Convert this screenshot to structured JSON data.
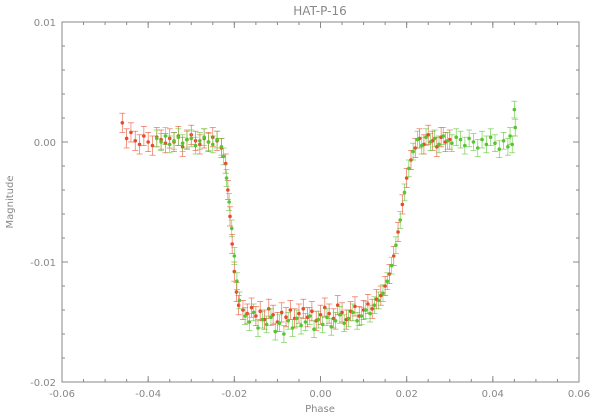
{
  "chart_data": {
    "type": "scatter",
    "title": "HAT-P-16",
    "xlabel": "Phase",
    "ylabel": "Magnitude",
    "xlim": [
      -0.06,
      0.06
    ],
    "ylim": [
      -0.02,
      0.01
    ],
    "y_inverted": true,
    "x_ticks": [
      "-0.06",
      "-0.04",
      "-0.02",
      "0.00",
      "0.02",
      "0.04",
      "0.06"
    ],
    "y_ticks": [
      "0.01",
      "0.00",
      "-0.01",
      "-0.02"
    ],
    "grid": false,
    "legend": "none",
    "error_bars": true,
    "series": [
      {
        "color": "#e84a2b",
        "points": [
          [
            -0.046,
            0.0016,
            0.0008
          ],
          [
            -0.045,
            0.0003,
            0.0008
          ],
          [
            -0.044,
            0.0008,
            0.0008
          ],
          [
            -0.043,
            0.0001,
            0.0008
          ],
          [
            -0.042,
            -0.0002,
            0.0008
          ],
          [
            -0.041,
            0.0005,
            0.0008
          ],
          [
            -0.04,
            0.0,
            0.0008
          ],
          [
            -0.039,
            -0.0003,
            0.0008
          ],
          [
            -0.038,
            0.0004,
            0.0008
          ],
          [
            -0.037,
            0.0002,
            0.0008
          ],
          [
            -0.036,
            -0.0001,
            0.0008
          ],
          [
            -0.035,
            0.0003,
            0.0008
          ],
          [
            -0.034,
            0.0,
            0.0008
          ],
          [
            -0.033,
            0.0005,
            0.0008
          ],
          [
            -0.032,
            -0.0004,
            0.0008
          ],
          [
            -0.031,
            0.0002,
            0.0008
          ],
          [
            -0.03,
            0.0006,
            0.0008
          ],
          [
            -0.029,
            0.0001,
            0.0008
          ],
          [
            -0.028,
            -0.0002,
            0.0008
          ],
          [
            -0.027,
            0.0003,
            0.0008
          ],
          [
            -0.026,
            0.0,
            0.0008
          ],
          [
            -0.025,
            0.0004,
            0.0008
          ],
          [
            -0.024,
            0.0001,
            0.0008
          ],
          [
            -0.023,
            -0.0005,
            0.0008
          ],
          [
            -0.022,
            -0.0018,
            0.0008
          ],
          [
            -0.0215,
            -0.004,
            0.0008
          ],
          [
            -0.021,
            -0.0062,
            0.0008
          ],
          [
            -0.0205,
            -0.0085,
            0.0008
          ],
          [
            -0.02,
            -0.0108,
            0.0008
          ],
          [
            -0.0195,
            -0.0125,
            0.0008
          ],
          [
            -0.019,
            -0.0136,
            0.0008
          ],
          [
            -0.018,
            -0.014,
            0.0008
          ],
          [
            -0.017,
            -0.0143,
            0.0008
          ],
          [
            -0.016,
            -0.0138,
            0.0008
          ],
          [
            -0.015,
            -0.0145,
            0.0008
          ],
          [
            -0.014,
            -0.0141,
            0.0008
          ],
          [
            -0.013,
            -0.0148,
            0.0008
          ],
          [
            -0.012,
            -0.0139,
            0.0008
          ],
          [
            -0.011,
            -0.0144,
            0.0008
          ],
          [
            -0.01,
            -0.015,
            0.0008
          ],
          [
            -0.009,
            -0.0142,
            0.0008
          ],
          [
            -0.008,
            -0.0146,
            0.0008
          ],
          [
            -0.007,
            -0.014,
            0.0008
          ],
          [
            -0.006,
            -0.0147,
            0.0008
          ],
          [
            -0.005,
            -0.0143,
            0.0008
          ],
          [
            -0.004,
            -0.0139,
            0.0008
          ],
          [
            -0.003,
            -0.0146,
            0.0008
          ],
          [
            -0.002,
            -0.0141,
            0.0008
          ],
          [
            -0.001,
            -0.0149,
            0.0008
          ],
          [
            0.0,
            -0.0144,
            0.0008
          ],
          [
            0.001,
            -0.0138,
            0.0008
          ],
          [
            0.002,
            -0.0143,
            0.0008
          ],
          [
            0.003,
            -0.0147,
            0.0008
          ],
          [
            0.004,
            -0.0136,
            0.0008
          ],
          [
            0.005,
            -0.0142,
            0.0008
          ],
          [
            0.006,
            -0.0148,
            0.0008
          ],
          [
            0.007,
            -0.0141,
            0.0008
          ],
          [
            0.008,
            -0.0137,
            0.0008
          ],
          [
            0.009,
            -0.0145,
            0.0008
          ],
          [
            0.01,
            -0.014,
            0.0008
          ],
          [
            0.011,
            -0.0135,
            0.0008
          ],
          [
            0.012,
            -0.0139,
            0.0008
          ],
          [
            0.013,
            -0.0131,
            0.0008
          ],
          [
            0.014,
            -0.0128,
            0.0008
          ],
          [
            0.015,
            -0.012,
            0.0008
          ],
          [
            0.016,
            -0.011,
            0.0008
          ],
          [
            0.017,
            -0.0095,
            0.0008
          ],
          [
            0.018,
            -0.0075,
            0.0008
          ],
          [
            0.019,
            -0.0052,
            0.0008
          ],
          [
            0.02,
            -0.003,
            0.0008
          ],
          [
            0.021,
            -0.0015,
            0.0008
          ],
          [
            0.022,
            -0.0005,
            0.0008
          ],
          [
            0.023,
            0.0003,
            0.0008
          ],
          [
            0.024,
            -0.0002,
            0.0008
          ],
          [
            0.025,
            0.0006,
            0.0008
          ],
          [
            0.026,
            0.0001,
            0.0008
          ],
          [
            0.027,
            -0.0004,
            0.0008
          ],
          [
            0.028,
            0.0004,
            0.0008
          ],
          [
            0.029,
            0.0,
            0.0008
          ],
          [
            0.03,
            0.0002,
            0.0008
          ]
        ]
      },
      {
        "color": "#58c42e",
        "points": [
          [
            -0.038,
            0.0003,
            0.0007
          ],
          [
            -0.037,
            0.0,
            0.0007
          ],
          [
            -0.036,
            0.0005,
            0.0007
          ],
          [
            -0.035,
            -0.0002,
            0.0007
          ],
          [
            -0.034,
            0.0001,
            0.0007
          ],
          [
            -0.033,
            0.0004,
            0.0007
          ],
          [
            -0.032,
            -0.0001,
            0.0007
          ],
          [
            -0.031,
            0.0002,
            0.0007
          ],
          [
            -0.03,
            0.0003,
            0.0007
          ],
          [
            -0.029,
            -0.0003,
            0.0007
          ],
          [
            -0.028,
            0.0001,
            0.0007
          ],
          [
            -0.027,
            0.0004,
            0.0007
          ],
          [
            -0.026,
            0.0,
            0.0007
          ],
          [
            -0.025,
            -0.0002,
            0.0007
          ],
          [
            -0.024,
            0.0002,
            0.0007
          ],
          [
            -0.023,
            -0.0004,
            0.0007
          ],
          [
            -0.0225,
            -0.0012,
            0.0007
          ],
          [
            -0.0218,
            -0.003,
            0.0007
          ],
          [
            -0.0212,
            -0.005,
            0.0007
          ],
          [
            -0.0206,
            -0.0072,
            0.0007
          ],
          [
            -0.02,
            -0.0095,
            0.0007
          ],
          [
            -0.0194,
            -0.0116,
            0.0007
          ],
          [
            -0.0188,
            -0.0132,
            0.0007
          ],
          [
            -0.0175,
            -0.0145,
            0.0007
          ],
          [
            -0.0165,
            -0.015,
            0.0007
          ],
          [
            -0.0155,
            -0.0142,
            0.0007
          ],
          [
            -0.0145,
            -0.0155,
            0.0007
          ],
          [
            -0.0135,
            -0.0148,
            0.0007
          ],
          [
            -0.0125,
            -0.0152,
            0.0007
          ],
          [
            -0.0115,
            -0.0146,
            0.0007
          ],
          [
            -0.0105,
            -0.0158,
            0.0007
          ],
          [
            -0.0095,
            -0.0151,
            0.0007
          ],
          [
            -0.0085,
            -0.016,
            0.0007
          ],
          [
            -0.0075,
            -0.0149,
            0.0007
          ],
          [
            -0.0065,
            -0.0155,
            0.0007
          ],
          [
            -0.0055,
            -0.0147,
            0.0007
          ],
          [
            -0.0045,
            -0.0153,
            0.0007
          ],
          [
            -0.0035,
            -0.015,
            0.0007
          ],
          [
            -0.0025,
            -0.0145,
            0.0007
          ],
          [
            -0.0015,
            -0.0156,
            0.0007
          ],
          [
            -0.0005,
            -0.0148,
            0.0007
          ],
          [
            0.0005,
            -0.0152,
            0.0007
          ],
          [
            0.0015,
            -0.0146,
            0.0007
          ],
          [
            0.0025,
            -0.0154,
            0.0007
          ],
          [
            0.0035,
            -0.0149,
            0.0007
          ],
          [
            0.0045,
            -0.0144,
            0.0007
          ],
          [
            0.0055,
            -0.0151,
            0.0007
          ],
          [
            0.0065,
            -0.0147,
            0.0007
          ],
          [
            0.0075,
            -0.0142,
            0.0007
          ],
          [
            0.0085,
            -0.0149,
            0.0007
          ],
          [
            0.0095,
            -0.0145,
            0.0007
          ],
          [
            0.0105,
            -0.014,
            0.0007
          ],
          [
            0.0115,
            -0.0143,
            0.0007
          ],
          [
            0.0125,
            -0.0136,
            0.0007
          ],
          [
            0.0135,
            -0.0132,
            0.0007
          ],
          [
            0.0145,
            -0.0126,
            0.0007
          ],
          [
            0.0155,
            -0.0116,
            0.0007
          ],
          [
            0.0165,
            -0.0103,
            0.0007
          ],
          [
            0.0175,
            -0.0086,
            0.0007
          ],
          [
            0.0185,
            -0.0065,
            0.0007
          ],
          [
            0.0195,
            -0.0042,
            0.0007
          ],
          [
            0.0205,
            -0.0022,
            0.0007
          ],
          [
            0.0215,
            -0.0008,
            0.0007
          ],
          [
            0.0225,
            0.0002,
            0.0007
          ],
          [
            0.0235,
            -0.0003,
            0.0007
          ],
          [
            0.0245,
            0.0004,
            0.0007
          ],
          [
            0.0255,
            0.0,
            0.0007
          ],
          [
            0.0265,
            0.0003,
            0.0007
          ],
          [
            0.0275,
            -0.0002,
            0.0007
          ],
          [
            0.0285,
            0.0005,
            0.0007
          ],
          [
            0.0295,
            0.0001,
            0.0007
          ],
          [
            0.0305,
            -0.0001,
            0.0007
          ],
          [
            0.0315,
            0.0004,
            0.0007
          ],
          [
            0.0325,
            0.0002,
            0.0007
          ],
          [
            0.0335,
            -0.0003,
            0.0007
          ],
          [
            0.0345,
            0.0003,
            0.0007
          ],
          [
            0.0355,
            0.0,
            0.0007
          ],
          [
            0.0365,
            -0.0005,
            0.0007
          ],
          [
            0.0375,
            0.0002,
            0.0007
          ],
          [
            0.0385,
            -0.0002,
            0.0007
          ],
          [
            0.0395,
            0.0004,
            0.0007
          ],
          [
            0.0405,
            -0.0001,
            0.0007
          ],
          [
            0.0415,
            -0.0006,
            0.0007
          ],
          [
            0.0425,
            0.0001,
            0.0007
          ],
          [
            0.0435,
            -0.0004,
            0.0007
          ],
          [
            0.044,
            0.0005,
            0.0007
          ],
          [
            0.0445,
            -0.0002,
            0.0007
          ],
          [
            0.045,
            0.0027,
            0.0007
          ],
          [
            0.0452,
            0.0012,
            0.0007
          ]
        ]
      }
    ]
  }
}
